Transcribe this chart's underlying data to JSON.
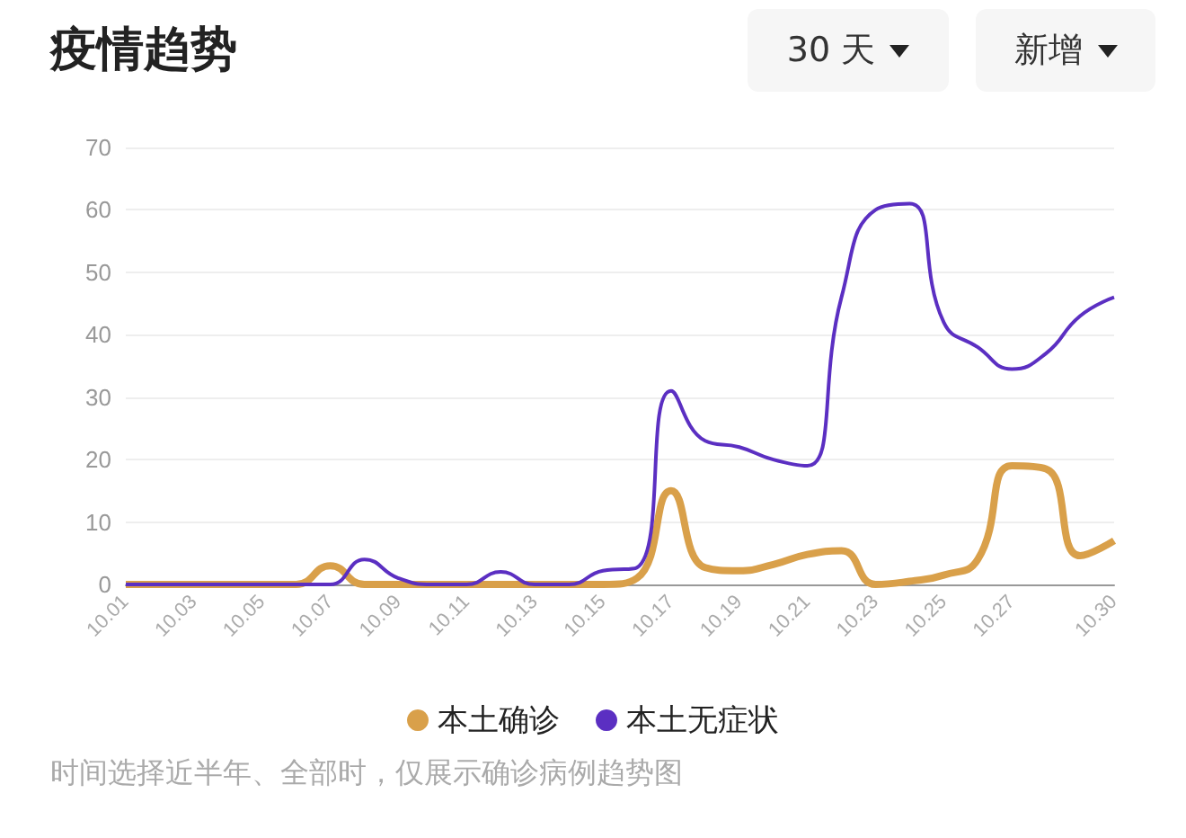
{
  "chart_data": {
    "type": "line",
    "title": "疫情趋势",
    "annotations": [
      "30 天",
      "新增",
      "时间选择近半年、全部时，仅展示确诊病例趋势图"
    ],
    "categories": [
      "10.01",
      null,
      "10.03",
      null,
      "10.05",
      null,
      "10.07",
      null,
      "10.09",
      null,
      "10.11",
      null,
      "10.13",
      null,
      "10.15",
      null,
      "10.17",
      null,
      "10.19",
      null,
      "10.21",
      null,
      "10.23",
      null,
      "10.25",
      null,
      "10.27",
      null,
      null,
      "10.30"
    ],
    "series": [
      {
        "name": "本土确诊",
        "color": "#d9a04a",
        "values": [
          0,
          0,
          0,
          0,
          0,
          0,
          3,
          0,
          0,
          0,
          0,
          0,
          0,
          0,
          0,
          1,
          15,
          2.7,
          2.2,
          3.2,
          4.8,
          5.4,
          0,
          0.5,
          1.5,
          4,
          19,
          18.5,
          4.6,
          7
        ]
      },
      {
        "name": "本土无症状",
        "color": "#5b2fc2",
        "values": [
          0,
          0,
          0,
          0,
          0,
          0,
          0,
          4,
          1,
          0,
          0,
          2,
          0,
          0,
          2.2,
          2.7,
          31,
          23,
          22,
          20,
          19,
          46,
          60,
          61,
          42,
          38,
          34.5,
          37,
          43,
          46
        ]
      }
    ],
    "ylim": [
      0,
      70
    ],
    "yticks": [
      0,
      10,
      20,
      30,
      40,
      50,
      60,
      70
    ],
    "grid": "y",
    "legend": "bottom",
    "marker": "none",
    "line_style": "solid"
  }
}
